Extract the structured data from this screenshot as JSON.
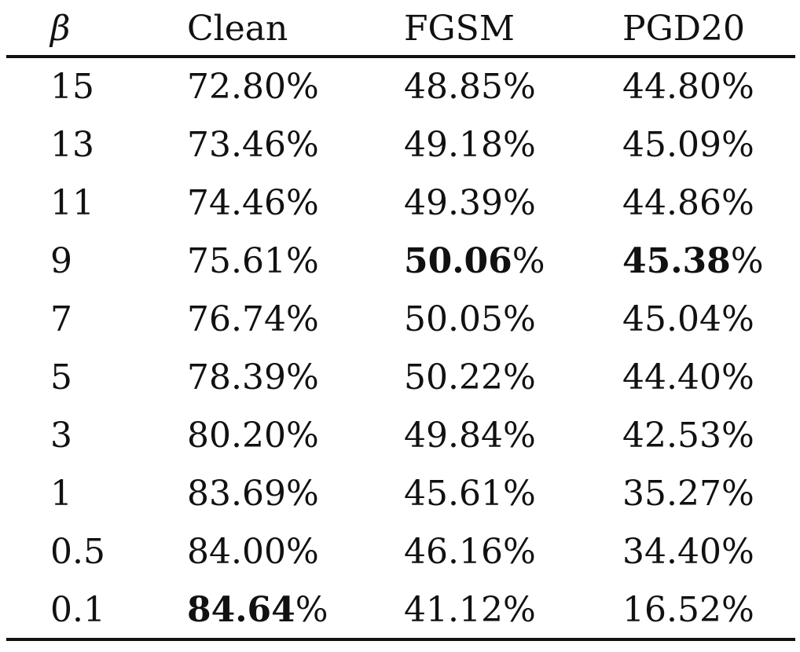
{
  "table": {
    "headers": [
      "β",
      "Clean",
      "FGSM",
      "PGD20"
    ],
    "rows": [
      {
        "beta": "15",
        "clean": "72.80%",
        "fgsm": "48.85%",
        "pgd20": "44.80%"
      },
      {
        "beta": "13",
        "clean": "73.46%",
        "fgsm": "49.18%",
        "pgd20": "45.09%"
      },
      {
        "beta": "11",
        "clean": "74.46%",
        "fgsm": "49.39%",
        "pgd20": "44.86%"
      },
      {
        "beta": "9",
        "clean": "75.61%",
        "fgsm_num": "50.06",
        "fgsm_pct": "%",
        "pgd20_num": "45.38",
        "pgd20_pct": "%"
      },
      {
        "beta": "7",
        "clean": "76.74%",
        "fgsm": "50.05%",
        "pgd20": "45.04%"
      },
      {
        "beta": "5",
        "clean": "78.39%",
        "fgsm": "50.22%",
        "pgd20": "44.40%"
      },
      {
        "beta": "3",
        "clean": "80.20%",
        "fgsm": "49.84%",
        "pgd20": "42.53%"
      },
      {
        "beta": "1",
        "clean": "83.69%",
        "fgsm": "45.61%",
        "pgd20": "35.27%"
      },
      {
        "beta": "0.5",
        "clean": "84.00%",
        "fgsm": "46.16%",
        "pgd20": "34.40%"
      },
      {
        "beta": "0.1",
        "clean_num": "84.64",
        "clean_pct": "%",
        "fgsm": "41.12%",
        "pgd20": "16.52%"
      }
    ]
  }
}
